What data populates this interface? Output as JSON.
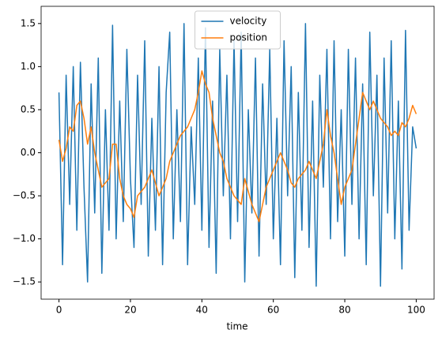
{
  "chart_data": {
    "type": "line",
    "xlabel": "time",
    "x": [
      0,
      1,
      2,
      3,
      4,
      5,
      6,
      7,
      8,
      9,
      10,
      11,
      12,
      13,
      14,
      15,
      16,
      17,
      18,
      19,
      20,
      21,
      22,
      23,
      24,
      25,
      26,
      27,
      28,
      29,
      30,
      31,
      32,
      33,
      34,
      35,
      36,
      37,
      38,
      39,
      40,
      41,
      42,
      43,
      44,
      45,
      46,
      47,
      48,
      49,
      50,
      51,
      52,
      53,
      54,
      55,
      56,
      57,
      58,
      59,
      60,
      61,
      62,
      63,
      64,
      65,
      66,
      67,
      68,
      69,
      70,
      71,
      72,
      73,
      74,
      75,
      76,
      77,
      78,
      79,
      80,
      81,
      82,
      83,
      84,
      85,
      86,
      87,
      88,
      89,
      90,
      91,
      92,
      93,
      94,
      95,
      96,
      97,
      98,
      99,
      100
    ],
    "series": [
      {
        "name": "velocity",
        "color": "#1f77b4",
        "values": [
          0.7,
          -1.3,
          0.9,
          -0.6,
          1.0,
          -0.9,
          1.05,
          -0.4,
          -1.5,
          0.8,
          -0.7,
          1.1,
          -1.4,
          0.5,
          -0.9,
          1.48,
          -1.0,
          0.6,
          -0.8,
          1.2,
          -0.3,
          -1.1,
          0.9,
          -0.6,
          1.3,
          -1.2,
          0.4,
          -0.9,
          1.0,
          -1.3,
          0.7,
          1.4,
          -1.0,
          0.5,
          -0.8,
          1.5,
          -1.3,
          0.3,
          -0.6,
          1.1,
          -0.9,
          1.45,
          -1.1,
          0.6,
          -1.4,
          1.2,
          -0.5,
          0.9,
          -1.0,
          1.3,
          -0.8,
          1.4,
          -1.5,
          0.5,
          -0.7,
          1.1,
          -1.2,
          0.8,
          -0.6,
          1.2,
          -1.0,
          0.4,
          -1.3,
          1.3,
          -0.5,
          1.0,
          -1.45,
          0.7,
          -0.9,
          1.5,
          -1.1,
          0.6,
          -1.55,
          0.9,
          -0.4,
          1.2,
          -1.0,
          1.3,
          -0.8,
          0.5,
          -1.2,
          1.2,
          -0.6,
          1.1,
          -1.0,
          0.8,
          -1.3,
          1.4,
          -0.5,
          0.9,
          -1.55,
          1.1,
          -0.7,
          1.3,
          -1.0,
          0.6,
          -1.35,
          1.42,
          -0.9,
          0.3,
          0.05
        ]
      },
      {
        "name": "position",
        "color": "#ff7f0e",
        "values": [
          0.15,
          -0.1,
          0.05,
          0.3,
          0.25,
          0.55,
          0.6,
          0.4,
          0.1,
          0.3,
          0.0,
          -0.2,
          -0.4,
          -0.35,
          -0.3,
          0.1,
          0.1,
          -0.3,
          -0.5,
          -0.6,
          -0.65,
          -0.75,
          -0.5,
          -0.45,
          -0.4,
          -0.3,
          -0.2,
          -0.35,
          -0.5,
          -0.4,
          -0.3,
          -0.1,
          0.0,
          0.1,
          0.2,
          0.25,
          0.3,
          0.4,
          0.5,
          0.7,
          0.95,
          0.8,
          0.7,
          0.4,
          0.2,
          0.0,
          -0.1,
          -0.3,
          -0.4,
          -0.5,
          -0.55,
          -0.6,
          -0.3,
          -0.45,
          -0.6,
          -0.7,
          -0.8,
          -0.6,
          -0.4,
          -0.3,
          -0.2,
          -0.1,
          0.0,
          -0.1,
          -0.2,
          -0.35,
          -0.4,
          -0.3,
          -0.25,
          -0.2,
          -0.1,
          -0.2,
          -0.3,
          -0.1,
          0.1,
          0.5,
          0.2,
          0.0,
          -0.3,
          -0.6,
          -0.4,
          -0.3,
          -0.2,
          0.1,
          0.4,
          0.7,
          0.6,
          0.5,
          0.6,
          0.5,
          0.4,
          0.35,
          0.3,
          0.2,
          0.25,
          0.2,
          0.35,
          0.3,
          0.4,
          0.55,
          0.45
        ]
      }
    ],
    "xlim": [
      -5,
      105
    ],
    "xticks": [
      0,
      20,
      40,
      60,
      80,
      100
    ],
    "ylim": [
      -1.7,
      1.7
    ],
    "yticks": [
      {
        "value": -1.5,
        "label": "−1.5"
      },
      {
        "value": -1,
        "label": "−1.0"
      },
      {
        "value": -0.5,
        "label": "−0.5"
      },
      {
        "value": 0,
        "label": "0.0"
      },
      0.5,
      {
        "value": 1,
        "label": "1.0"
      },
      1.5
    ],
    "grid": false,
    "legend": "upper center"
  }
}
